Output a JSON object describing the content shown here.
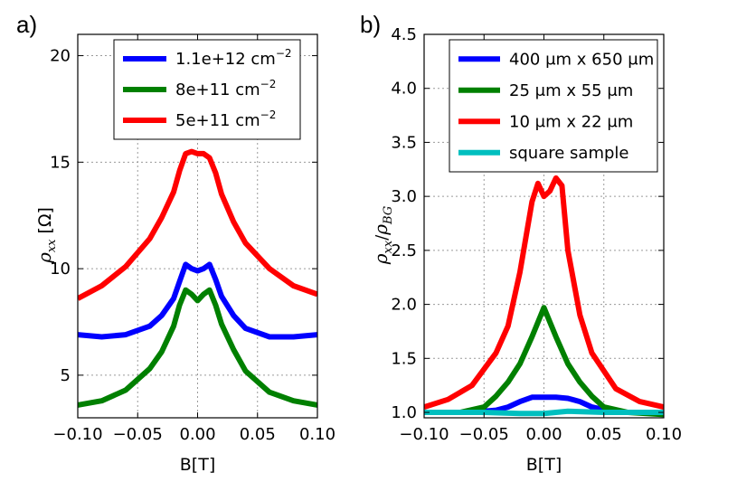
{
  "chart_data": [
    {
      "panel_label": "a)",
      "type": "line",
      "xlabel": "B[T]",
      "ylabel_math": "ρ",
      "ylabel_sub": "xx",
      "ylabel_unit": "[Ω]",
      "xlim": [
        -0.1,
        0.1
      ],
      "ylim": [
        3,
        21
      ],
      "xticks": [
        -0.1,
        -0.05,
        0.0,
        0.05,
        0.1
      ],
      "xtick_labels": [
        "−0.10",
        "−0.05",
        "0.00",
        "0.05",
        "0.10"
      ],
      "yticks": [
        5,
        10,
        15,
        20
      ],
      "ytick_labels": [
        "5",
        "10",
        "15",
        "20"
      ],
      "grid": true,
      "legend_position": "top-right",
      "series": [
        {
          "name": "1.1e+12 cm",
          "superscript": "−2",
          "color": "#0000ff",
          "x": [
            -0.1,
            -0.08,
            -0.06,
            -0.04,
            -0.03,
            -0.02,
            -0.015,
            -0.01,
            -0.005,
            0.0,
            0.005,
            0.01,
            0.015,
            0.02,
            0.03,
            0.04,
            0.06,
            0.08,
            0.1
          ],
          "y": [
            6.9,
            6.8,
            6.9,
            7.3,
            7.8,
            8.6,
            9.4,
            10.2,
            10.0,
            9.9,
            10.0,
            10.2,
            9.5,
            8.7,
            7.8,
            7.2,
            6.8,
            6.8,
            6.9
          ]
        },
        {
          "name": "8e+11 cm",
          "superscript": "−2",
          "color": "#008000",
          "x": [
            -0.1,
            -0.08,
            -0.06,
            -0.04,
            -0.03,
            -0.02,
            -0.015,
            -0.01,
            -0.005,
            0.0,
            0.005,
            0.01,
            0.015,
            0.02,
            0.03,
            0.04,
            0.06,
            0.08,
            0.1
          ],
          "y": [
            3.6,
            3.8,
            4.3,
            5.3,
            6.1,
            7.3,
            8.3,
            9.0,
            8.8,
            8.5,
            8.8,
            9.0,
            8.3,
            7.4,
            6.2,
            5.2,
            4.2,
            3.8,
            3.6
          ]
        },
        {
          "name": "5e+11 cm",
          "superscript": "−2",
          "color": "#ff0000",
          "x": [
            -0.1,
            -0.08,
            -0.06,
            -0.04,
            -0.03,
            -0.02,
            -0.015,
            -0.01,
            -0.005,
            0.0,
            0.005,
            0.01,
            0.015,
            0.02,
            0.03,
            0.04,
            0.06,
            0.08,
            0.1
          ],
          "y": [
            8.6,
            9.2,
            10.1,
            11.4,
            12.4,
            13.6,
            14.6,
            15.4,
            15.5,
            15.4,
            15.4,
            15.2,
            14.5,
            13.5,
            12.2,
            11.2,
            10.0,
            9.2,
            8.8
          ]
        }
      ]
    },
    {
      "panel_label": "b)",
      "type": "line",
      "xlabel": "B[T]",
      "ylabel_math": "ρ",
      "ylabel_sub": "xx",
      "ylabel_slash": "/",
      "ylabel_math2": "ρ",
      "ylabel_sub2": "BG",
      "xlim": [
        -0.1,
        0.1
      ],
      "ylim": [
        0.95,
        4.5
      ],
      "xticks": [
        -0.1,
        -0.05,
        0.0,
        0.05,
        0.1
      ],
      "xtick_labels": [
        "−0.10",
        "−0.05",
        "0.00",
        "0.05",
        "0.10"
      ],
      "yticks": [
        1.0,
        1.5,
        2.0,
        2.5,
        3.0,
        3.5,
        4.0,
        4.5
      ],
      "ytick_labels": [
        "1.0",
        "1.5",
        "2.0",
        "2.5",
        "3.0",
        "3.5",
        "4.0",
        "4.5"
      ],
      "grid": true,
      "legend_position": "top-right",
      "series": [
        {
          "name": "400 μm x 650 μm",
          "color": "#0000ff",
          "x": [
            -0.1,
            -0.06,
            -0.04,
            -0.03,
            -0.02,
            -0.01,
            0.0,
            0.01,
            0.02,
            0.03,
            0.04,
            0.06,
            0.1
          ],
          "y": [
            1.0,
            1.0,
            1.02,
            1.05,
            1.1,
            1.14,
            1.14,
            1.14,
            1.13,
            1.1,
            1.05,
            1.0,
            1.0
          ]
        },
        {
          "name": "25 μm x 55 μm",
          "color": "#008000",
          "x": [
            -0.1,
            -0.07,
            -0.05,
            -0.04,
            -0.03,
            -0.02,
            -0.01,
            0.0,
            0.01,
            0.02,
            0.03,
            0.04,
            0.05,
            0.07,
            0.1
          ],
          "y": [
            1.0,
            1.0,
            1.05,
            1.15,
            1.28,
            1.45,
            1.7,
            1.97,
            1.7,
            1.45,
            1.28,
            1.15,
            1.05,
            1.0,
            0.98
          ]
        },
        {
          "name": "10 μm x 22 μm",
          "color": "#ff0000",
          "x": [
            -0.1,
            -0.08,
            -0.06,
            -0.04,
            -0.03,
            -0.02,
            -0.01,
            -0.005,
            0.0,
            0.005,
            0.01,
            0.015,
            0.02,
            0.03,
            0.04,
            0.06,
            0.08,
            0.1
          ],
          "y": [
            1.05,
            1.12,
            1.25,
            1.55,
            1.8,
            2.3,
            2.95,
            3.12,
            3.0,
            3.05,
            3.17,
            3.1,
            2.5,
            1.9,
            1.55,
            1.22,
            1.1,
            1.05
          ]
        },
        {
          "name": "square sample",
          "color": "#00bfbf",
          "x": [
            -0.1,
            -0.05,
            -0.02,
            0.0,
            0.02,
            0.05,
            0.1
          ],
          "y": [
            1.0,
            1.0,
            0.99,
            0.99,
            1.01,
            1.0,
            1.0
          ]
        }
      ]
    }
  ]
}
